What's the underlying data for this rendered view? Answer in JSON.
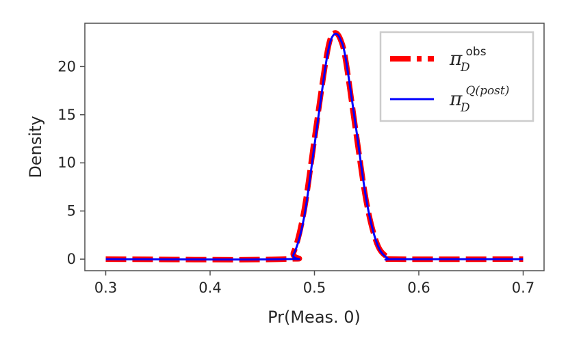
{
  "chart_data": {
    "type": "line",
    "title": "",
    "xlabel": "Pr(Meas. 0)",
    "ylabel": "Density",
    "xlim": [
      0.28,
      0.72
    ],
    "ylim": [
      -1.2,
      24.5
    ],
    "x_ticks": [
      0.3,
      0.4,
      0.5,
      0.6,
      0.7
    ],
    "x_tick_labels": [
      "0.3",
      "0.4",
      "0.5",
      "0.6",
      "0.7"
    ],
    "y_ticks": [
      0,
      5,
      10,
      15,
      20
    ],
    "y_tick_labels": [
      "0",
      "5",
      "10",
      "15",
      "20"
    ],
    "grid": false,
    "legend_position": "top-right",
    "series": [
      {
        "name": "π_D^obs",
        "legend": {
          "base": "π",
          "sub": "D",
          "sup": "obs"
        },
        "color": "#ff0000",
        "style": "dashed",
        "x": [
          0.3,
          0.47,
          0.48,
          0.49,
          0.5,
          0.51,
          0.515,
          0.52,
          0.525,
          0.53,
          0.54,
          0.55,
          0.56,
          0.57,
          0.58,
          0.7
        ],
        "y": [
          0.0,
          0.0,
          0.7,
          5.0,
          12.5,
          20.0,
          22.8,
          23.5,
          22.8,
          20.6,
          13.0,
          5.8,
          1.6,
          0.2,
          0.0,
          0.0
        ]
      },
      {
        "name": "π_D^Q(post)",
        "legend": {
          "base": "π",
          "sub": "D",
          "sup": "Q(post)"
        },
        "color": "#0000ff",
        "style": "solid",
        "x": [
          0.3,
          0.47,
          0.48,
          0.49,
          0.5,
          0.51,
          0.515,
          0.52,
          0.525,
          0.53,
          0.54,
          0.55,
          0.56,
          0.57,
          0.58,
          0.7
        ],
        "y": [
          0.0,
          0.0,
          0.5,
          4.3,
          11.8,
          19.6,
          22.5,
          23.4,
          22.8,
          20.8,
          13.5,
          6.0,
          1.6,
          0.1,
          0.0,
          0.0
        ]
      }
    ]
  }
}
